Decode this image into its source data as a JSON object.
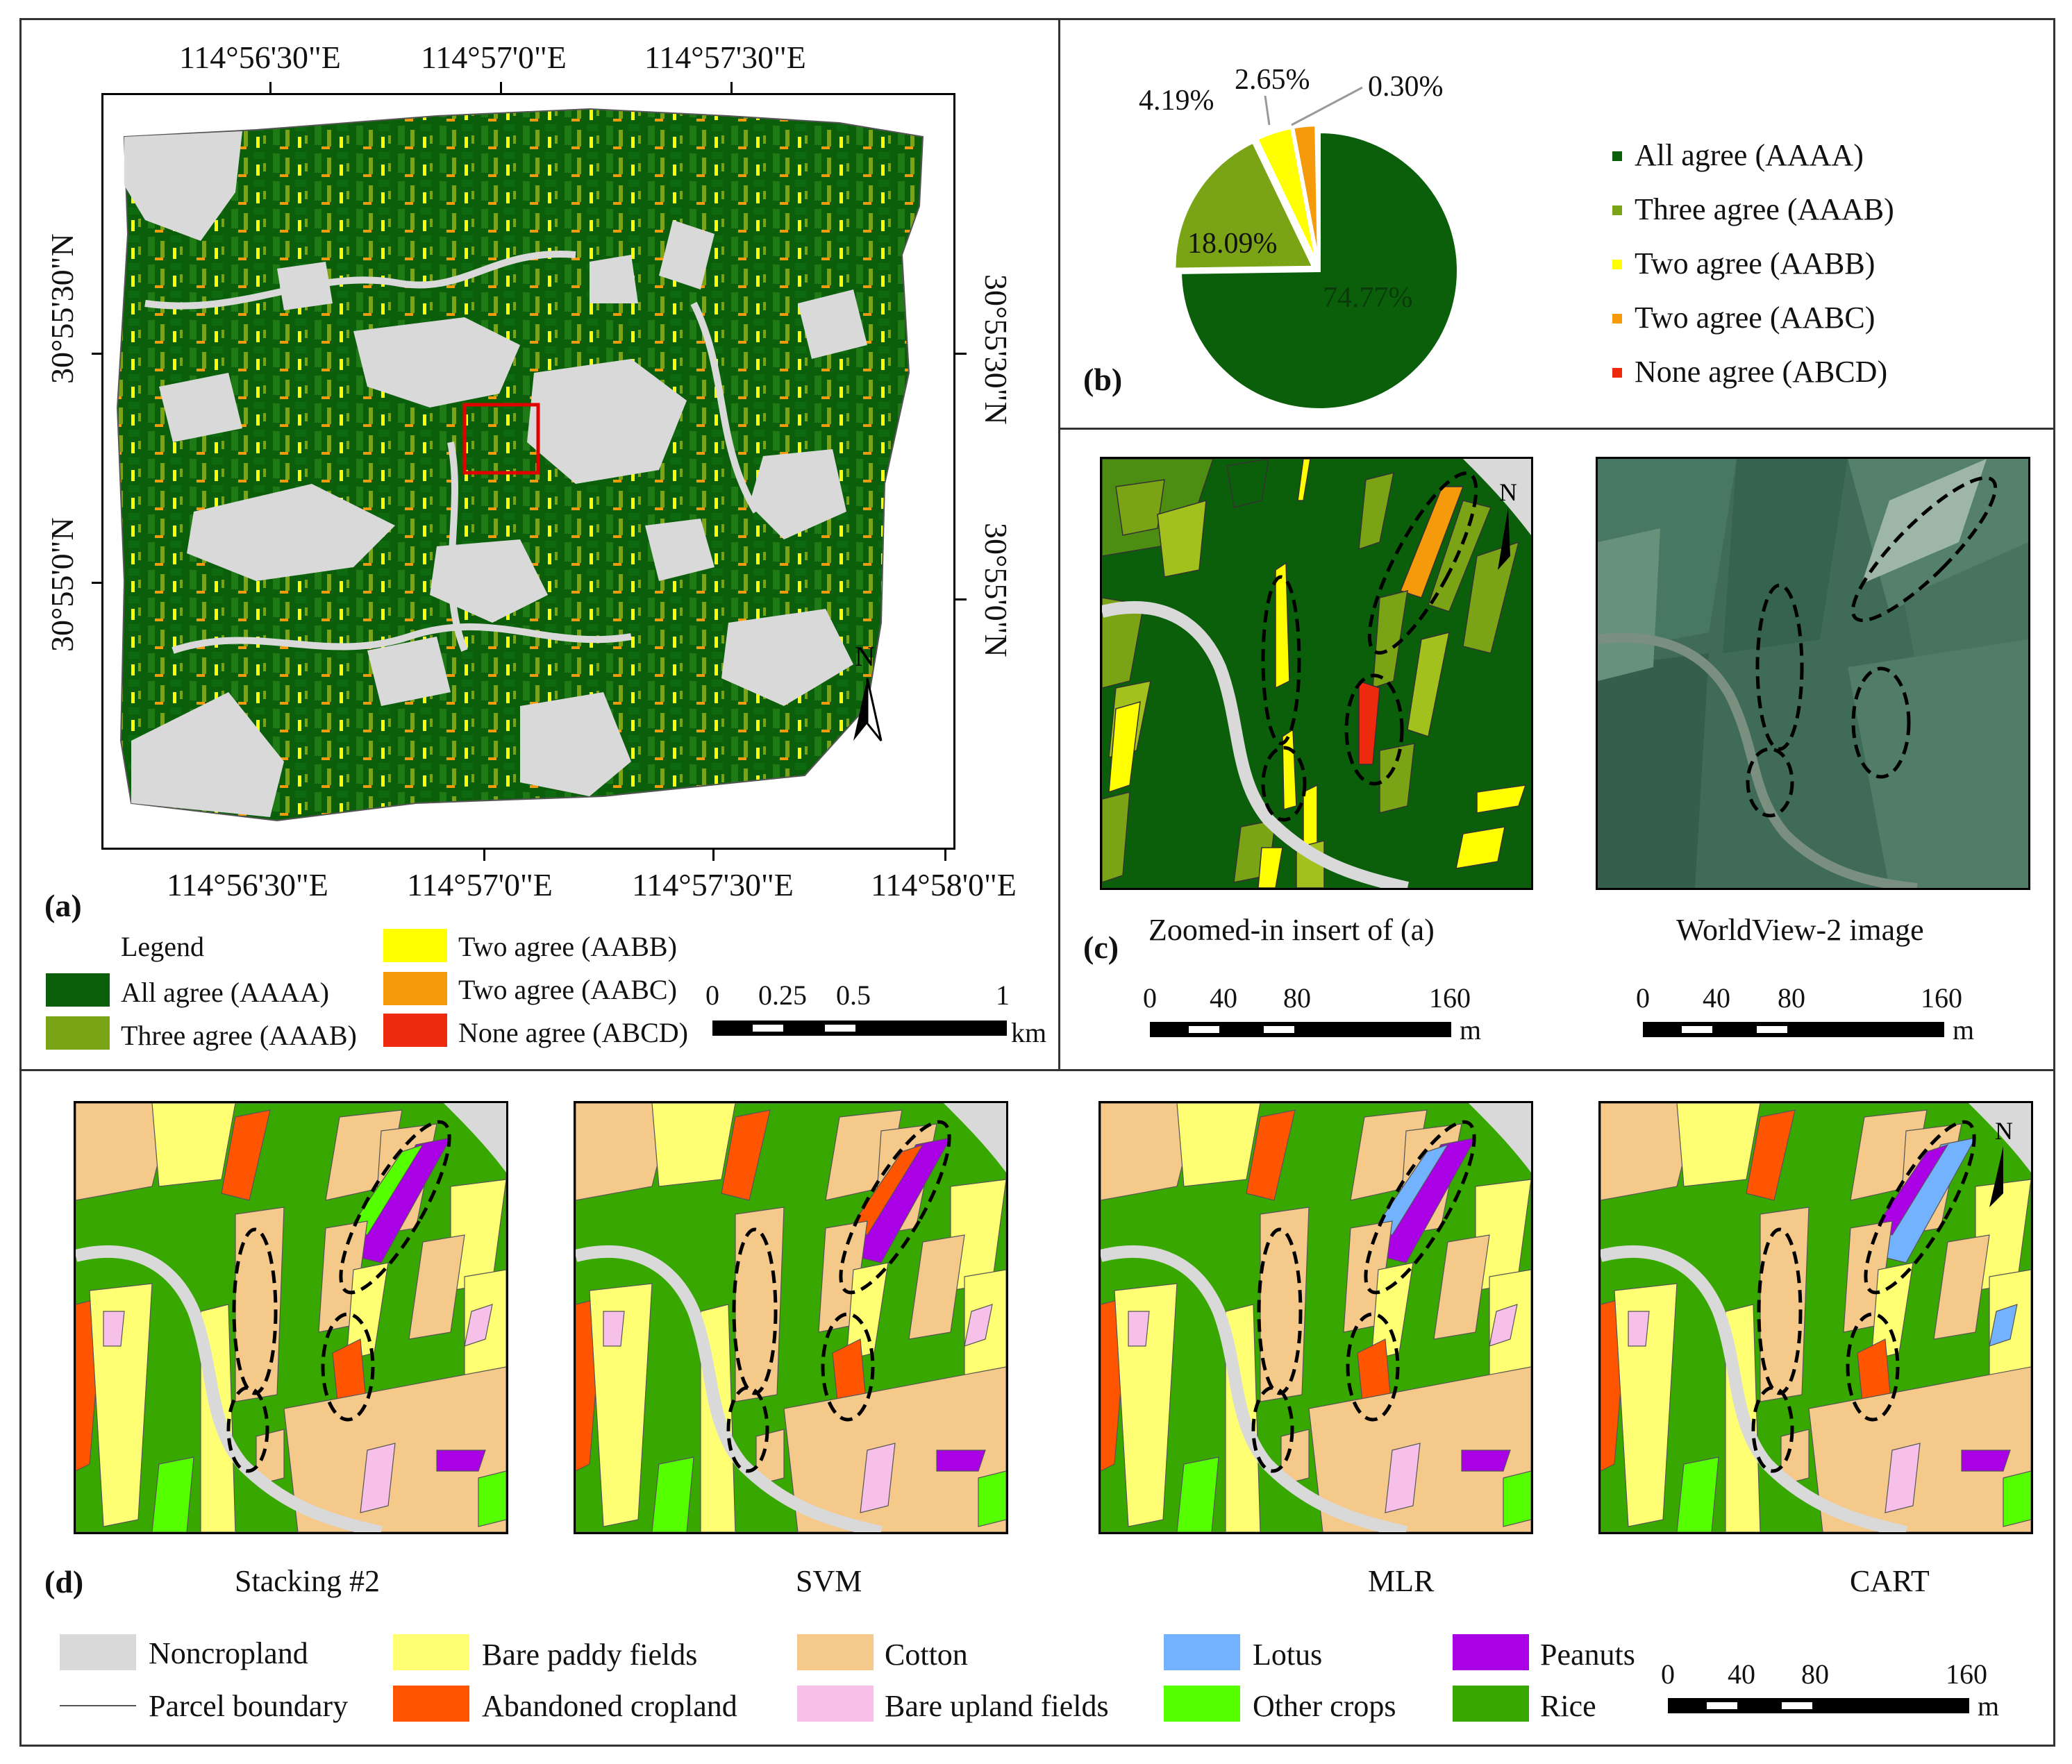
{
  "panel_a": {
    "label": "(a)",
    "top_ticks": [
      "114°56'30\"E",
      "114°57'0\"E",
      "114°57'30\"E"
    ],
    "bottom_ticks": [
      "114°56'30\"E",
      "114°57'0\"E",
      "114°57'30\"E",
      "114°58'0\"E"
    ],
    "left_ticks": [
      "30°55'30\"N",
      "30°55'0\"N"
    ],
    "right_ticks": [
      "30°55'30\"N",
      "30°55'0\"N"
    ],
    "north": "N",
    "legend_title": "Legend",
    "legend": [
      {
        "label": "All agree  (AAAA)",
        "color": "#0b5f0b"
      },
      {
        "label": "Three agree (AAAB)",
        "color": "#7aa416"
      },
      {
        "label": "Two agree  (AABB)",
        "color": "#ffff00"
      },
      {
        "label": "Two agree (AABC)",
        "color": "#f59a0b"
      },
      {
        "label": "None agree  (ABCD)",
        "color": "#ee2a0e"
      }
    ],
    "scale_labels": [
      "0",
      "0.25",
      "0.5",
      "1"
    ],
    "scale_unit": "km"
  },
  "panel_b": {
    "label": "(b)",
    "chart_data": {
      "type": "pie",
      "title": "",
      "categories": [
        "All agree (AAAA)",
        "Three agree (AAAB)",
        "Two agree (AABB)",
        "Two agree (AABC)",
        "None agree (ABCD)"
      ],
      "values": [
        74.77,
        18.09,
        4.19,
        2.65,
        0.3
      ],
      "value_labels": [
        "74.77%",
        "18.09%",
        "4.19%",
        "2.65%",
        "0.30%"
      ],
      "colors": [
        "#0b5f0b",
        "#7aa416",
        "#ffff00",
        "#f59a0b",
        "#ee2a0e"
      ],
      "legend_position": "right"
    }
  },
  "panel_c": {
    "label": "(c)",
    "left_caption": "Zoomed-in insert of (a)",
    "right_caption": "WorldView-2 image",
    "north": "N",
    "scale_labels": [
      "0",
      "40",
      "80",
      "160"
    ],
    "scale_unit": "m"
  },
  "panel_d": {
    "label": "(d)",
    "maps": [
      "Stacking #2",
      "SVM",
      "MLR",
      "CART"
    ],
    "north": "N",
    "legend": [
      {
        "label": "Noncropland",
        "color": "#d9d9d9"
      },
      {
        "label": "Parcel boundary",
        "color": "#555555"
      },
      {
        "label": "Bare paddy fields",
        "color": "#ffff73"
      },
      {
        "label": "Abandoned cropland",
        "color": "#ff5500"
      },
      {
        "label": "Cotton",
        "color": "#f5c98a"
      },
      {
        "label": "Bare upland fields",
        "color": "#f7c0e8"
      },
      {
        "label": "Lotus",
        "color": "#73b2ff"
      },
      {
        "label": "Other crops",
        "color": "#55ff00"
      },
      {
        "label": "Peanuts",
        "color": "#a900e6"
      },
      {
        "label": "Rice",
        "color": "#38a800"
      }
    ],
    "scale_labels": [
      "0",
      "40",
      "80",
      "160"
    ],
    "scale_unit": "m"
  }
}
